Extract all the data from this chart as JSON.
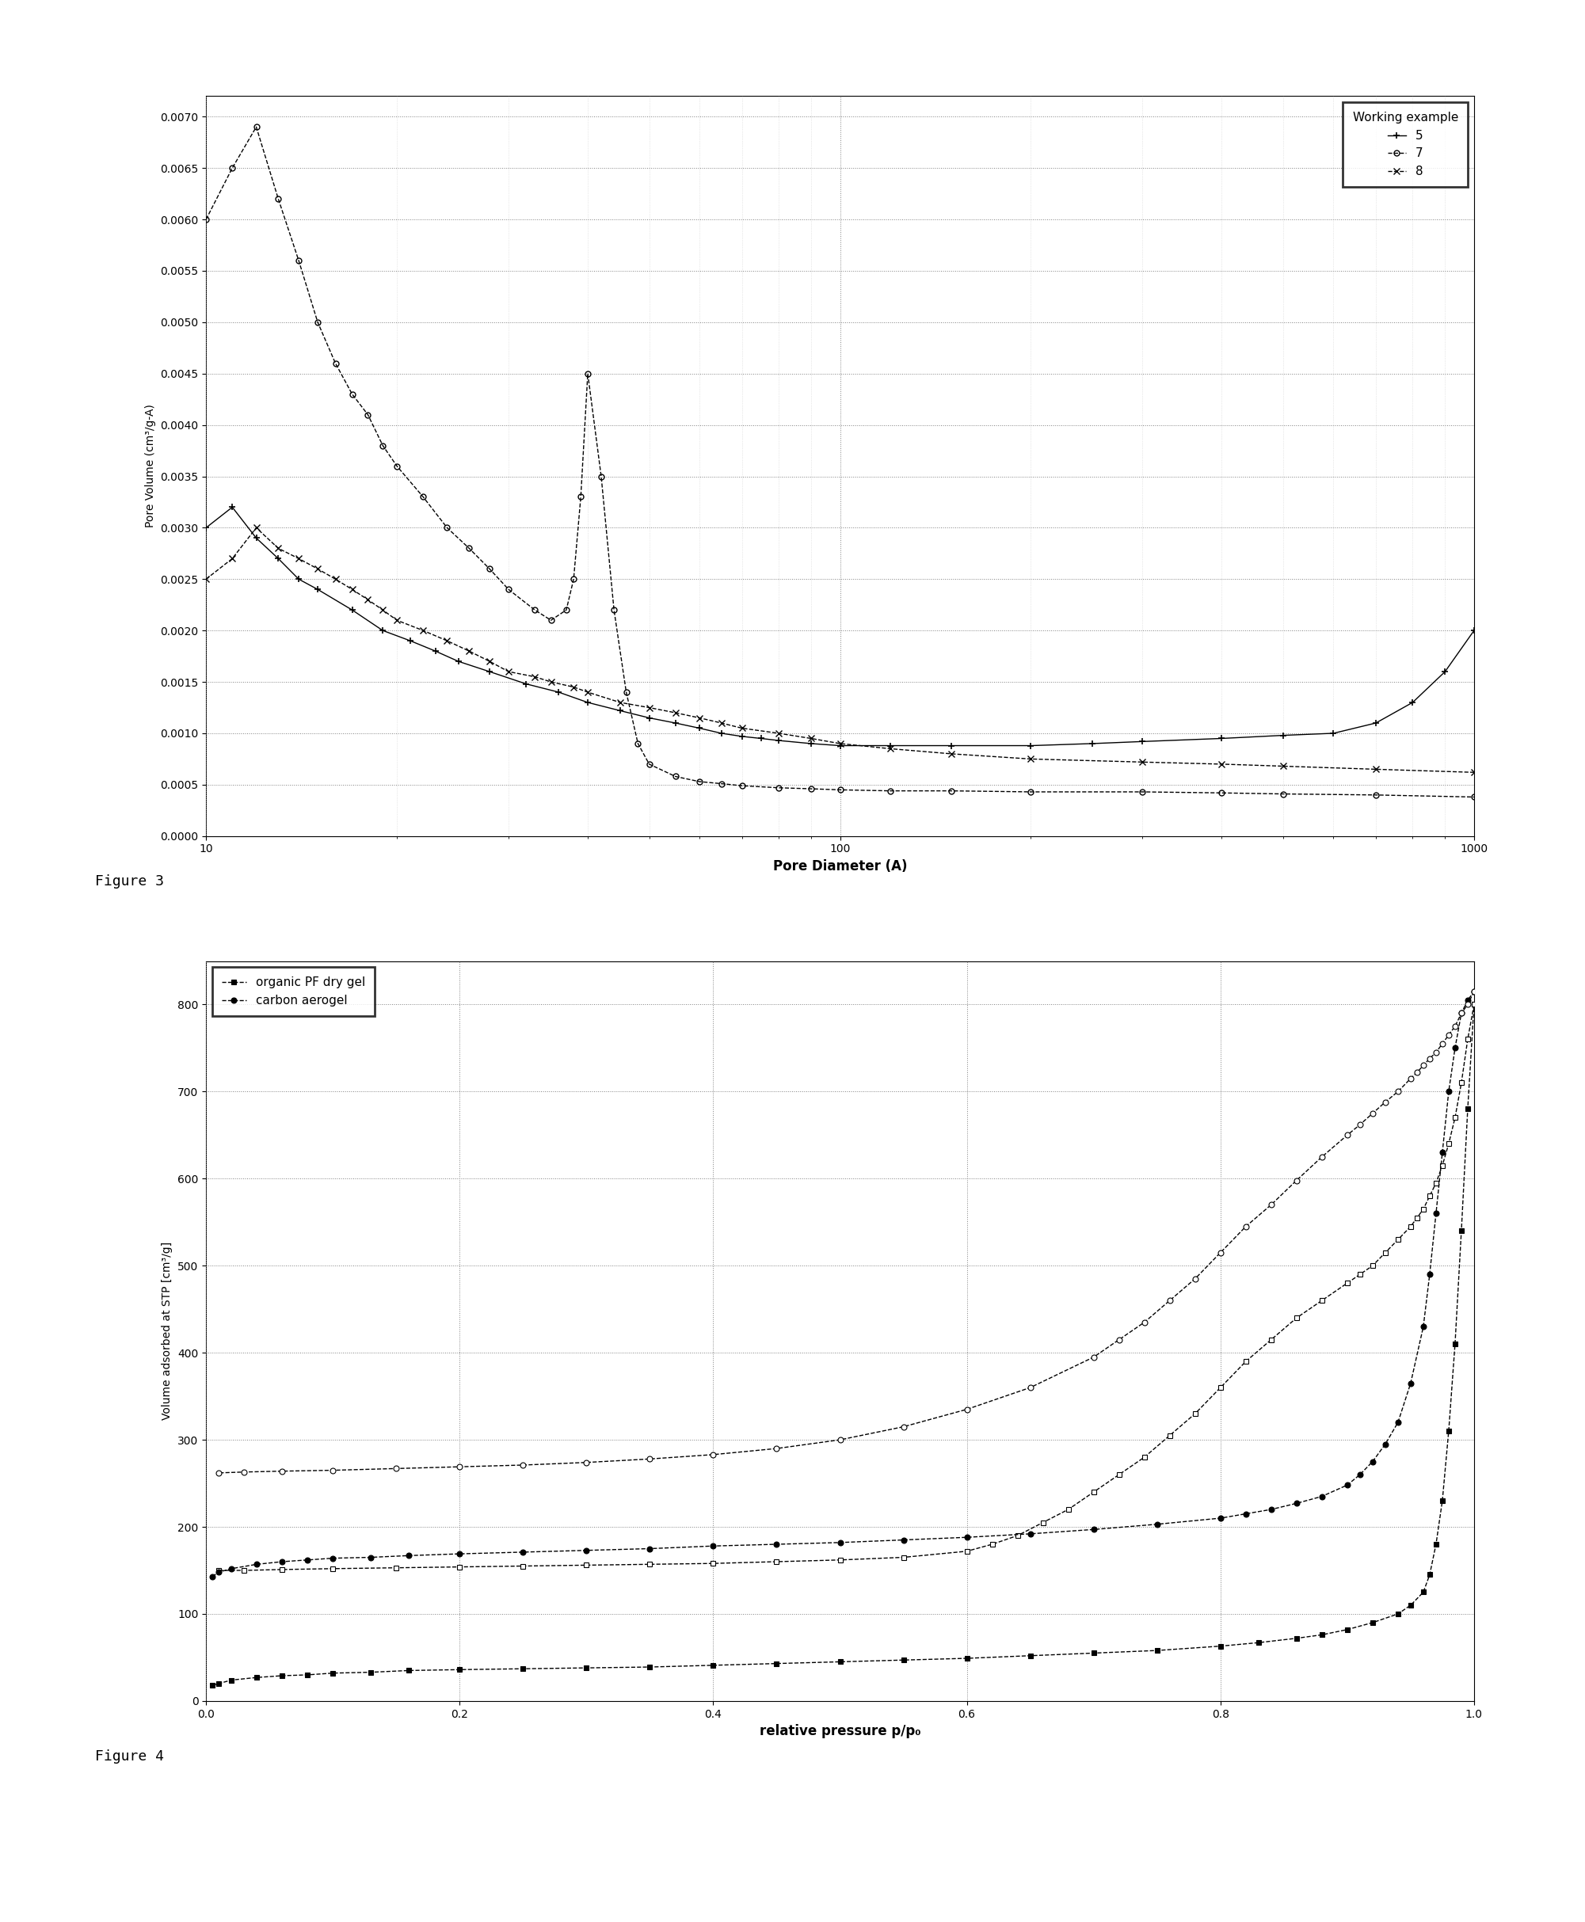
{
  "fig3": {
    "xlabel": "Pore Diameter (A)",
    "ylabel": "Pore Volume (cm³/g-A)",
    "xlim": [
      10,
      1000
    ],
    "ylim": [
      0.0,
      0.0072
    ],
    "yticks": [
      0.0,
      0.0005,
      0.001,
      0.0015,
      0.002,
      0.0025,
      0.003,
      0.0035,
      0.004,
      0.0045,
      0.005,
      0.0055,
      0.006,
      0.0065,
      0.007
    ],
    "legend_title": "Working example",
    "series5_x": [
      10,
      11,
      12,
      13,
      14,
      15,
      17,
      19,
      21,
      23,
      25,
      28,
      32,
      36,
      40,
      45,
      50,
      55,
      60,
      65,
      70,
      75,
      80,
      90,
      100,
      120,
      150,
      200,
      250,
      300,
      400,
      500,
      600,
      700,
      800,
      900,
      1000
    ],
    "series5_y": [
      0.003,
      0.0032,
      0.0029,
      0.0027,
      0.0025,
      0.0024,
      0.0022,
      0.002,
      0.0019,
      0.0018,
      0.0017,
      0.0016,
      0.00148,
      0.0014,
      0.0013,
      0.00122,
      0.00115,
      0.0011,
      0.00105,
      0.001,
      0.00097,
      0.00095,
      0.00093,
      0.0009,
      0.00088,
      0.00088,
      0.00088,
      0.00088,
      0.0009,
      0.00092,
      0.00095,
      0.00098,
      0.001,
      0.0011,
      0.0013,
      0.0016,
      0.002
    ],
    "series7_x": [
      10,
      11,
      12,
      13,
      14,
      15,
      16,
      17,
      18,
      19,
      20,
      22,
      24,
      26,
      28,
      30,
      33,
      35,
      37,
      38,
      39,
      40,
      42,
      44,
      46,
      48,
      50,
      55,
      60,
      65,
      70,
      80,
      90,
      100,
      120,
      150,
      200,
      300,
      400,
      500,
      700,
      1000
    ],
    "series7_y": [
      0.006,
      0.0065,
      0.0069,
      0.0062,
      0.0056,
      0.005,
      0.0046,
      0.0043,
      0.0041,
      0.0038,
      0.0036,
      0.0033,
      0.003,
      0.0028,
      0.0026,
      0.0024,
      0.0022,
      0.0021,
      0.0022,
      0.0025,
      0.0033,
      0.0045,
      0.0035,
      0.0022,
      0.0014,
      0.0009,
      0.0007,
      0.00058,
      0.00053,
      0.00051,
      0.00049,
      0.00047,
      0.00046,
      0.00045,
      0.00044,
      0.00044,
      0.00043,
      0.00043,
      0.00042,
      0.00041,
      0.0004,
      0.00038
    ],
    "series8_x": [
      10,
      11,
      12,
      13,
      14,
      15,
      16,
      17,
      18,
      19,
      20,
      22,
      24,
      26,
      28,
      30,
      33,
      35,
      38,
      40,
      45,
      50,
      55,
      60,
      65,
      70,
      80,
      90,
      100,
      120,
      150,
      200,
      300,
      400,
      500,
      700,
      1000
    ],
    "series8_y": [
      0.0025,
      0.0027,
      0.003,
      0.0028,
      0.0027,
      0.0026,
      0.0025,
      0.0024,
      0.0023,
      0.0022,
      0.0021,
      0.002,
      0.0019,
      0.0018,
      0.0017,
      0.0016,
      0.00155,
      0.0015,
      0.00145,
      0.0014,
      0.0013,
      0.00125,
      0.0012,
      0.00115,
      0.0011,
      0.00105,
      0.001,
      0.00095,
      0.0009,
      0.00085,
      0.0008,
      0.00075,
      0.00072,
      0.0007,
      0.00068,
      0.00065,
      0.00062
    ]
  },
  "fig4": {
    "xlabel": "relative pressure p/p₀",
    "ylabel": "Volume adsorbed at STP [cm³/g]",
    "xlim": [
      0.0,
      1.0
    ],
    "ylim": [
      0,
      850
    ],
    "yticks": [
      0,
      100,
      200,
      300,
      400,
      500,
      600,
      700,
      800
    ],
    "xticks": [
      0.0,
      0.2,
      0.4,
      0.6,
      0.8,
      1.0
    ],
    "pf_adsorb_x": [
      0.005,
      0.01,
      0.02,
      0.04,
      0.06,
      0.08,
      0.1,
      0.13,
      0.16,
      0.2,
      0.25,
      0.3,
      0.35,
      0.4,
      0.45,
      0.5,
      0.55,
      0.6,
      0.65,
      0.7,
      0.75,
      0.8,
      0.83,
      0.86,
      0.88,
      0.9,
      0.92,
      0.94,
      0.95,
      0.96,
      0.965,
      0.97,
      0.975,
      0.98,
      0.985,
      0.99,
      0.995,
      1.0
    ],
    "pf_adsorb_y": [
      18,
      20,
      24,
      27,
      29,
      30,
      32,
      33,
      35,
      36,
      37,
      38,
      39,
      41,
      43,
      45,
      47,
      49,
      52,
      55,
      58,
      63,
      67,
      72,
      76,
      82,
      90,
      100,
      110,
      125,
      145,
      180,
      230,
      310,
      410,
      540,
      680,
      800
    ],
    "pf_desorp_x": [
      1.0,
      0.995,
      0.99,
      0.985,
      0.98,
      0.975,
      0.97,
      0.965,
      0.96,
      0.955,
      0.95,
      0.94,
      0.93,
      0.92,
      0.91,
      0.9,
      0.88,
      0.86,
      0.84,
      0.82,
      0.8,
      0.78,
      0.76,
      0.74,
      0.72,
      0.7,
      0.68,
      0.66,
      0.64,
      0.62,
      0.6,
      0.55,
      0.5,
      0.45,
      0.4,
      0.35,
      0.3,
      0.25,
      0.2,
      0.15,
      0.1,
      0.06,
      0.03,
      0.01
    ],
    "pf_desorp_y": [
      800,
      760,
      710,
      670,
      640,
      615,
      595,
      580,
      565,
      555,
      545,
      530,
      515,
      500,
      490,
      480,
      460,
      440,
      415,
      390,
      360,
      330,
      305,
      280,
      260,
      240,
      220,
      205,
      190,
      180,
      172,
      165,
      162,
      160,
      158,
      157,
      156,
      155,
      154,
      153,
      152,
      151,
      150,
      150
    ],
    "ca_adsorb_x": [
      0.005,
      0.01,
      0.02,
      0.04,
      0.06,
      0.08,
      0.1,
      0.13,
      0.16,
      0.2,
      0.25,
      0.3,
      0.35,
      0.4,
      0.45,
      0.5,
      0.55,
      0.6,
      0.65,
      0.7,
      0.75,
      0.8,
      0.82,
      0.84,
      0.86,
      0.88,
      0.9,
      0.91,
      0.92,
      0.93,
      0.94,
      0.95,
      0.96,
      0.965,
      0.97,
      0.975,
      0.98,
      0.985,
      0.99,
      0.995,
      1.0
    ],
    "ca_adsorb_y": [
      143,
      148,
      152,
      157,
      160,
      162,
      164,
      165,
      167,
      169,
      171,
      173,
      175,
      178,
      180,
      182,
      185,
      188,
      192,
      197,
      203,
      210,
      215,
      220,
      227,
      235,
      248,
      260,
      275,
      295,
      320,
      365,
      430,
      490,
      560,
      630,
      700,
      750,
      790,
      805,
      815
    ],
    "ca_desorp_x": [
      1.0,
      0.995,
      0.99,
      0.985,
      0.98,
      0.975,
      0.97,
      0.965,
      0.96,
      0.955,
      0.95,
      0.94,
      0.93,
      0.92,
      0.91,
      0.9,
      0.88,
      0.86,
      0.84,
      0.82,
      0.8,
      0.78,
      0.76,
      0.74,
      0.72,
      0.7,
      0.65,
      0.6,
      0.55,
      0.5,
      0.45,
      0.4,
      0.35,
      0.3,
      0.25,
      0.2,
      0.15,
      0.1,
      0.06,
      0.03,
      0.01
    ],
    "ca_desorp_y": [
      815,
      800,
      790,
      775,
      765,
      755,
      745,
      738,
      730,
      722,
      715,
      700,
      688,
      675,
      662,
      650,
      625,
      598,
      570,
      545,
      515,
      485,
      460,
      435,
      415,
      395,
      360,
      335,
      315,
      300,
      290,
      283,
      278,
      274,
      271,
      269,
      267,
      265,
      264,
      263,
      262
    ]
  }
}
